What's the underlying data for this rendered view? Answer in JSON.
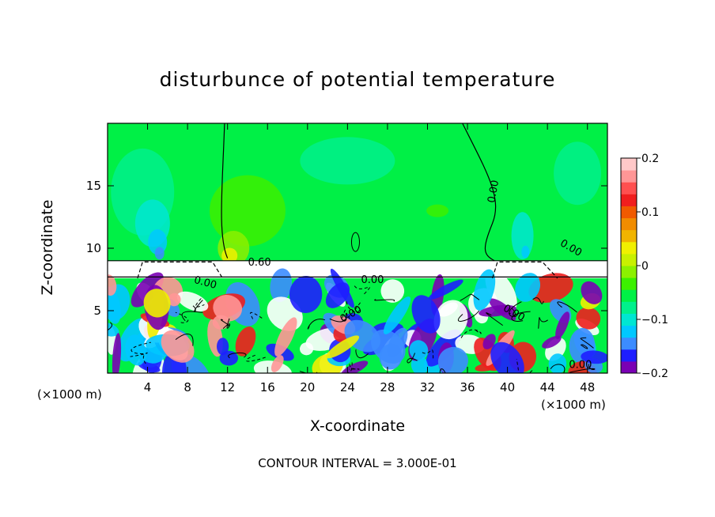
{
  "chart_data": {
    "type": "heatmap",
    "title": "disturbunce of potential temperature",
    "xlabel": "X-coordinate",
    "ylabel": "Z-coordinate",
    "x_unit": "(×1000 m)",
    "z_unit": "(×1000 m)",
    "x_range": [
      0,
      50
    ],
    "z_range": [
      0,
      20
    ],
    "x_ticks": [
      4,
      8,
      12,
      16,
      20,
      24,
      28,
      32,
      36,
      40,
      44,
      48
    ],
    "z_ticks": [
      5,
      10,
      15
    ],
    "colorbar": {
      "min": -0.2,
      "max": 0.2,
      "tick_values": [
        -0.2,
        -0.1,
        0,
        0.1,
        0.2
      ],
      "tick_labels": [
        "−0.2",
        "−0.1",
        "0",
        "0.1",
        "0.2"
      ],
      "colors": [
        "#7a00b4",
        "#1e1eff",
        "#3c8cff",
        "#00c8ff",
        "#00e6d2",
        "#00f08c",
        "#00f046",
        "#3cf000",
        "#8cf000",
        "#c8f000",
        "#f0f000",
        "#f0b400",
        "#f08c00",
        "#f05a00",
        "#f01e1e",
        "#ff5050",
        "#ff9696",
        "#ffc8c8"
      ]
    },
    "contour_labels": [
      "0.00",
      "0.00",
      "0.60",
      "0.00",
      "0.00",
      "0.00",
      "0.00",
      "0.00",
      "0.00"
    ],
    "contour_interval_text": "CONTOUR INTERVAL = 3.000E-01"
  }
}
